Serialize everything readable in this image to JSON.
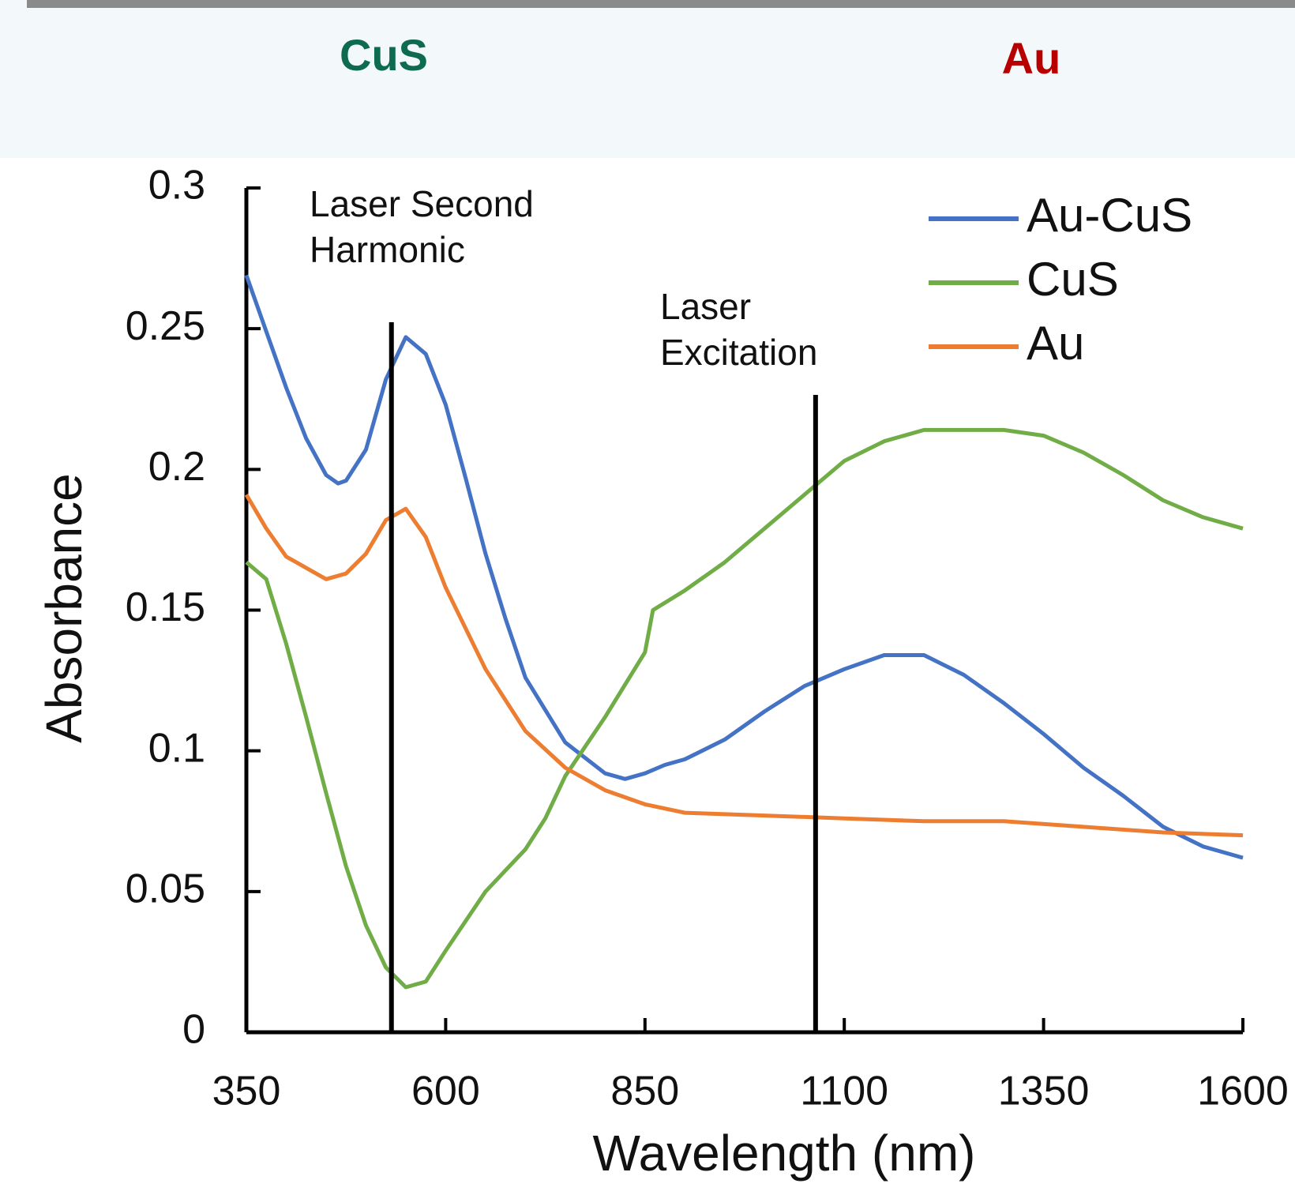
{
  "header": {
    "left_label": "CuS",
    "right_label": "Au"
  },
  "chart_data": {
    "type": "line",
    "x_label": "Wavelength (nm)",
    "y_label": "Absorbance",
    "xlim": [
      350,
      1600
    ],
    "xticks": [
      350,
      600,
      850,
      1100,
      1350,
      1600
    ],
    "ylim": [
      0,
      0.3
    ],
    "yticks": [
      0,
      0.05,
      0.1,
      0.15,
      0.2,
      0.25,
      0.3
    ],
    "legend": "top-right",
    "annotations": [
      {
        "lines": [
          "Laser Second",
          "Harmonic"
        ],
        "x": 532
      },
      {
        "lines": [
          "Laser",
          "Excitation"
        ],
        "x": 1064
      }
    ],
    "series": [
      {
        "name": "Au-CuS",
        "color": "#4472c4",
        "x": [
          350,
          375,
          400,
          425,
          450,
          465,
          475,
          500,
          525,
          550,
          575,
          600,
          625,
          650,
          675,
          700,
          750,
          800,
          825,
          850,
          875,
          900,
          950,
          1000,
          1050,
          1100,
          1150,
          1175,
          1200,
          1250,
          1300,
          1350,
          1400,
          1450,
          1500,
          1550,
          1600
        ],
        "values": [
          0.269,
          0.249,
          0.229,
          0.211,
          0.198,
          0.195,
          0.196,
          0.207,
          0.232,
          0.247,
          0.241,
          0.223,
          0.197,
          0.17,
          0.147,
          0.126,
          0.103,
          0.092,
          0.09,
          0.092,
          0.095,
          0.097,
          0.104,
          0.114,
          0.123,
          0.129,
          0.134,
          0.134,
          0.134,
          0.127,
          0.117,
          0.106,
          0.094,
          0.084,
          0.073,
          0.066,
          0.062
        ]
      },
      {
        "name": "CuS",
        "color": "#70ad47",
        "x": [
          350,
          375,
          400,
          425,
          450,
          475,
          500,
          525,
          550,
          575,
          600,
          650,
          700,
          725,
          750,
          800,
          850,
          860,
          900,
          950,
          1000,
          1050,
          1100,
          1150,
          1200,
          1250,
          1300,
          1350,
          1400,
          1450,
          1500,
          1550,
          1600
        ],
        "values": [
          0.167,
          0.161,
          0.138,
          0.112,
          0.085,
          0.059,
          0.038,
          0.023,
          0.016,
          0.018,
          0.029,
          0.05,
          0.065,
          0.076,
          0.091,
          0.112,
          0.135,
          0.15,
          0.157,
          0.167,
          0.179,
          0.191,
          0.203,
          0.21,
          0.214,
          0.214,
          0.214,
          0.212,
          0.206,
          0.198,
          0.189,
          0.183,
          0.179
        ]
      },
      {
        "name": "Au",
        "color": "#ed7d31",
        "x": [
          350,
          375,
          400,
          450,
          475,
          500,
          525,
          550,
          575,
          600,
          650,
          700,
          750,
          800,
          850,
          900,
          1000,
          1100,
          1200,
          1300,
          1400,
          1500,
          1600
        ],
        "values": [
          0.191,
          0.179,
          0.169,
          0.161,
          0.163,
          0.17,
          0.182,
          0.186,
          0.176,
          0.158,
          0.129,
          0.107,
          0.094,
          0.086,
          0.081,
          0.078,
          0.077,
          0.076,
          0.075,
          0.075,
          0.073,
          0.071,
          0.07
        ]
      }
    ]
  }
}
